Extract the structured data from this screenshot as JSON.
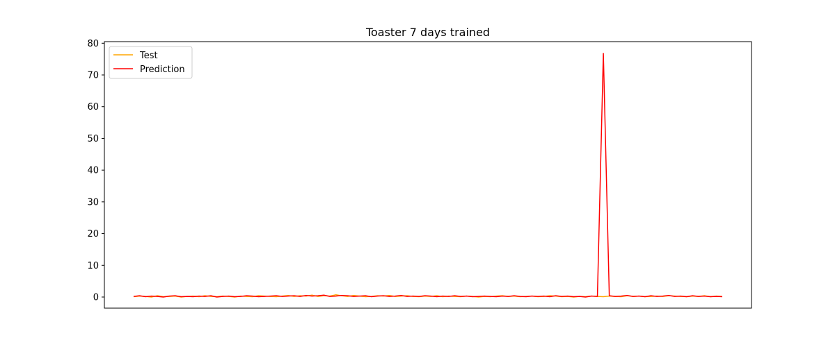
{
  "chart_data": {
    "type": "line",
    "title": "Toaster 7 days trained",
    "xlabel": "",
    "ylabel": "",
    "ylim": [
      -3.5,
      80.5
    ],
    "yticks": [
      0,
      10,
      20,
      30,
      40,
      50,
      60,
      70,
      80
    ],
    "xticks_visible": false,
    "grid": false,
    "legend_placement": "top-left",
    "series": [
      {
        "name": "Test",
        "color": "#ffa500",
        "values": [
          0.1,
          0.3,
          0.2,
          0.0,
          0.4,
          0.1,
          0.2,
          0.3,
          0.0,
          0.2,
          0.3,
          0.1,
          0.4,
          0.2,
          0.1,
          0.3,
          0.2,
          0.0,
          0.3,
          0.2,
          0.1,
          0.4,
          0.3,
          0.2,
          0.1,
          0.3,
          0.5,
          0.2,
          0.4,
          0.3,
          0.6,
          0.2,
          0.4,
          0.3,
          0.7,
          0.4,
          0.2,
          0.5,
          0.3,
          0.1,
          0.2,
          0.4,
          0.3,
          0.5,
          0.2,
          0.3,
          0.4,
          0.2,
          0.1,
          0.3,
          0.2,
          0.4,
          0.1,
          0.3,
          0.2,
          0.1,
          0.3,
          0.2,
          0.0,
          0.2,
          0.1,
          0.3,
          0.4,
          0.2,
          0.3,
          0.1,
          0.2,
          0.3,
          0.1,
          0.2,
          0.4,
          0.3,
          0.1,
          0.2,
          0.0,
          0.2,
          0.1,
          0.3,
          0.2,
          0.1,
          0.3,
          0.2,
          0.1,
          0.4,
          0.2,
          0.3,
          0.1,
          0.2,
          0.3,
          0.2,
          0.4,
          0.3,
          0.2,
          0.1,
          0.3,
          0.2,
          0.4,
          0.1,
          0.3,
          0.2
        ]
      },
      {
        "name": "Prediction",
        "color": "#ff0000",
        "values": [
          0.2,
          0.4,
          0.1,
          0.3,
          0.2,
          0.0,
          0.3,
          0.4,
          0.1,
          0.2,
          0.1,
          0.3,
          0.2,
          0.4,
          0.0,
          0.2,
          0.3,
          0.1,
          0.2,
          0.4,
          0.3,
          0.1,
          0.2,
          0.3,
          0.4,
          0.2,
          0.3,
          0.4,
          0.2,
          0.5,
          0.3,
          0.4,
          0.6,
          0.2,
          0.3,
          0.5,
          0.4,
          0.2,
          0.3,
          0.4,
          0.1,
          0.3,
          0.4,
          0.2,
          0.3,
          0.5,
          0.2,
          0.3,
          0.2,
          0.4,
          0.3,
          0.1,
          0.3,
          0.2,
          0.4,
          0.2,
          0.3,
          0.1,
          0.2,
          0.3,
          0.2,
          0.1,
          0.3,
          0.2,
          0.4,
          0.2,
          0.1,
          0.3,
          0.2,
          0.3,
          0.1,
          0.4,
          0.2,
          0.3,
          0.1,
          0.2,
          0.0,
          0.3,
          0.2,
          76.8,
          0.4,
          0.2,
          0.3,
          0.5,
          0.2,
          0.3,
          0.1,
          0.4,
          0.2,
          0.3,
          0.5,
          0.2,
          0.3,
          0.1,
          0.4,
          0.2,
          0.3,
          0.1,
          0.2,
          0.1
        ]
      }
    ]
  }
}
